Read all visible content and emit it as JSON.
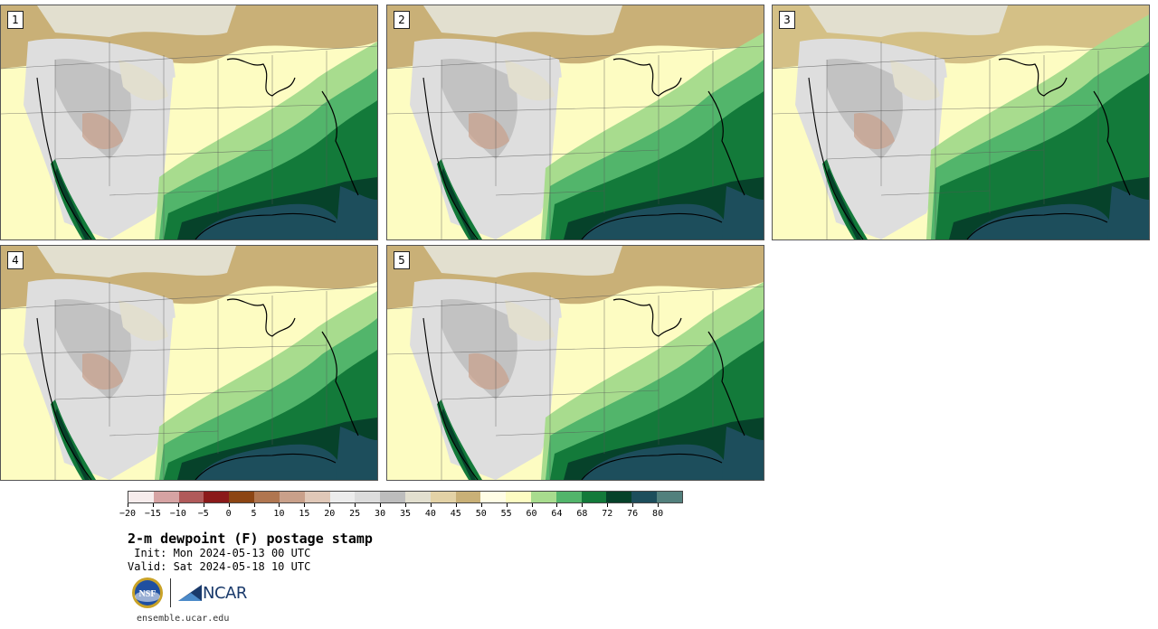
{
  "panels": [
    {
      "label": "1"
    },
    {
      "label": "2"
    },
    {
      "label": "3"
    },
    {
      "label": "4"
    },
    {
      "label": "5"
    }
  ],
  "colorbar": {
    "colors": [
      "#f6ecec",
      "#d6a3a3",
      "#b05a5a",
      "#8b1a1a",
      "#8c4513",
      "#b07650",
      "#c9a08a",
      "#e0c8b8",
      "#ececec",
      "#dcdcdc",
      "#bdbdbd",
      "#e2dfcf",
      "#e3d2a6",
      "#c9b077",
      "#fffde5",
      "#fdfcc2",
      "#a8dc8e",
      "#52b56b",
      "#137a3a",
      "#06422a",
      "#1d4e5c",
      "#52807d"
    ],
    "tick_labels": [
      "−20",
      "−15",
      "−10",
      "−5",
      "0",
      "5",
      "10",
      "15",
      "20",
      "25",
      "30",
      "35",
      "40",
      "45",
      "50",
      "55",
      "60",
      "64",
      "68",
      "72",
      "76",
      "80"
    ]
  },
  "title": "2-m dewpoint (F) postage stamp",
  "init": " Init: Mon 2024-05-13 00 UTC",
  "valid": "Valid: Sat 2024-05-18 10 UTC",
  "logos": {
    "nsf": "NSF",
    "ncar": "NCAR"
  },
  "site": "ensemble.ucar.edu"
}
